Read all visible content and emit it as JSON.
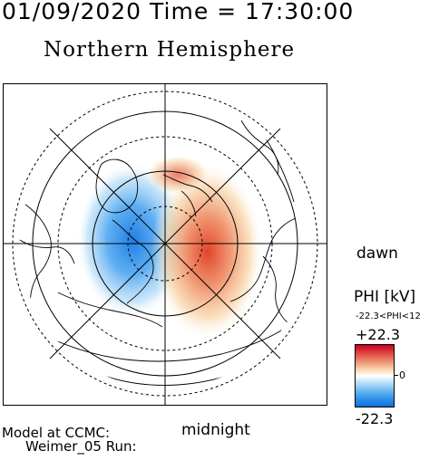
{
  "header": {
    "datetime": "01/09/2020 Time = 17:30:00",
    "title": "Northern Hemisphere"
  },
  "map": {
    "labels": {
      "dawn": "dawn",
      "midnight": "midnight"
    },
    "colors": {
      "positive": "#d42a1e",
      "negative": "#1e7fe6"
    }
  },
  "legend": {
    "label": "PHI [kV]",
    "range_text": "-22.3<PHI<12",
    "max": "+22.3",
    "zero": "0",
    "min": "-22.3"
  },
  "footer": {
    "line1": "Model at CCMC:",
    "line2": "Weimer_05 Run:"
  }
}
